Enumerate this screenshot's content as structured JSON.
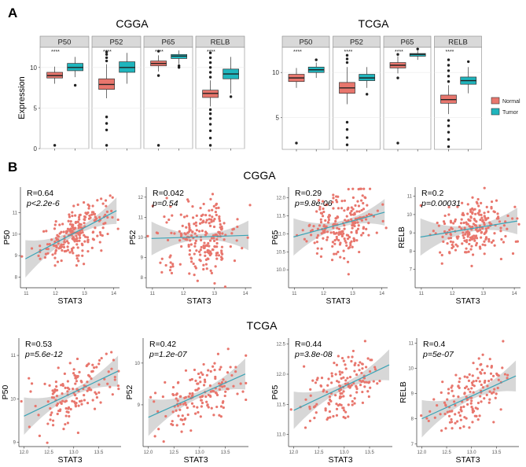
{
  "panel_labels": [
    "A",
    "B"
  ],
  "colors": {
    "normal": "#E8766D",
    "tumor": "#1FB5BD",
    "fit": "#3BA3B5",
    "ci": "#C9C9C9",
    "strip": "#D9D9D9",
    "grid": "#EBEBEB"
  },
  "chart_data": [
    {
      "type": "box",
      "title": "CGGA",
      "ylabel": "Expression",
      "ylim": [
        0,
        12.5
      ],
      "yticks": [
        0,
        5,
        10
      ],
      "facets": [
        "P50",
        "P52",
        "P65",
        "RELB"
      ],
      "significance": "****",
      "legend": [
        "Normal",
        "Tumor"
      ],
      "series": [
        {
          "name": "Normal",
          "boxes": [
            {
              "q1": 8.7,
              "med": 9.0,
              "q3": 9.4,
              "lo": 8.0,
              "hi": 10.1,
              "outliers": [
                0.4
              ]
            },
            {
              "q1": 7.3,
              "med": 7.9,
              "q3": 8.6,
              "lo": 6.2,
              "hi": 10.4,
              "outliers": [
                0.4,
                2.3,
                3.1,
                3.9,
                10.8,
                11.2,
                11.6,
                11.9
              ]
            },
            {
              "q1": 10.2,
              "med": 10.5,
              "q3": 10.8,
              "lo": 9.5,
              "hi": 11.5,
              "outliers": [
                0.4,
                9.0,
                12.0
              ]
            },
            {
              "q1": 6.3,
              "med": 6.8,
              "q3": 7.2,
              "lo": 5.2,
              "hi": 8.4,
              "outliers": [
                0.4,
                1.3,
                2.2,
                3.0,
                3.7,
                4.3,
                4.8,
                8.8,
                9.4,
                10.0,
                10.6,
                11.2,
                11.8
              ]
            }
          ]
        },
        {
          "name": "Tumor",
          "boxes": [
            {
              "q1": 9.6,
              "med": 10.0,
              "q3": 10.5,
              "lo": 8.8,
              "hi": 11.3,
              "outliers": [
                7.8
              ]
            },
            {
              "q1": 9.4,
              "med": 10.0,
              "q3": 10.7,
              "lo": 8.0,
              "hi": 11.8,
              "outliers": []
            },
            {
              "q1": 11.1,
              "med": 11.4,
              "q3": 11.6,
              "lo": 10.4,
              "hi": 12.1,
              "outliers": [
                10.0,
                10.2
              ]
            },
            {
              "q1": 8.6,
              "med": 9.2,
              "q3": 9.8,
              "lo": 6.8,
              "hi": 11.3,
              "outliers": [
                6.4
              ]
            }
          ]
        }
      ]
    },
    {
      "type": "box",
      "title": "TCGA",
      "ylabel": "",
      "ylim": [
        1.5,
        12.8
      ],
      "yticks": [
        5,
        10
      ],
      "facets": [
        "P50",
        "P52",
        "P65",
        "RELB"
      ],
      "significance": "****",
      "legend": [
        "Normal",
        "Tumor"
      ],
      "series": [
        {
          "name": "Normal",
          "boxes": [
            {
              "q1": 9.0,
              "med": 9.4,
              "q3": 9.8,
              "lo": 8.3,
              "hi": 10.5,
              "outliers": [
                2.2
              ]
            },
            {
              "q1": 7.7,
              "med": 8.3,
              "q3": 8.9,
              "lo": 6.5,
              "hi": 10.6,
              "outliers": [
                2.0,
                2.8,
                3.7,
                4.5,
                11.1,
                11.5,
                11.9
              ]
            },
            {
              "q1": 10.5,
              "med": 10.8,
              "q3": 11.1,
              "lo": 9.9,
              "hi": 11.8,
              "outliers": [
                2.2,
                9.4,
                12.0
              ]
            },
            {
              "q1": 6.6,
              "med": 7.0,
              "q3": 7.5,
              "lo": 5.4,
              "hi": 8.6,
              "outliers": [
                1.8,
                2.6,
                3.4,
                4.1,
                4.7,
                9.0,
                9.6,
                10.2,
                10.8,
                11.4
              ]
            }
          ]
        },
        {
          "name": "Tumor",
          "boxes": [
            {
              "q1": 10.0,
              "med": 10.3,
              "q3": 10.6,
              "lo": 9.4,
              "hi": 11.1,
              "outliers": [
                11.4
              ]
            },
            {
              "q1": 9.1,
              "med": 9.4,
              "q3": 9.8,
              "lo": 8.3,
              "hi": 10.6,
              "outliers": [
                7.6
              ]
            },
            {
              "q1": 11.8,
              "med": 12.0,
              "q3": 12.1,
              "lo": 11.4,
              "hi": 12.5,
              "outliers": [
                12.6
              ]
            },
            {
              "q1": 8.7,
              "med": 9.1,
              "q3": 9.5,
              "lo": 7.7,
              "hi": 10.6,
              "outliers": [
                11.2
              ]
            }
          ]
        }
      ]
    },
    {
      "type": "scatter",
      "group": "CGGA",
      "xlabel": "STAT3",
      "ylabel": "P50",
      "annotation_r": "R=0.64",
      "annotation_p": "p<2.2e-6",
      "xlim": [
        10.8,
        14.2
      ],
      "ylim": [
        7.5,
        12.2
      ],
      "xticks": [
        "11",
        "12",
        "13",
        "14"
      ],
      "yticks": [
        "8",
        "9",
        "10",
        "11"
      ],
      "n": 220,
      "slope": 0.72,
      "intercept": 0.95,
      "noise": 0.55,
      "xmean": 12.7,
      "xsd": 0.6
    },
    {
      "type": "scatter",
      "group": "CGGA",
      "xlabel": "STAT3",
      "ylabel": "P52",
      "annotation_r": "R=0.042",
      "annotation_p": "p=0.54",
      "xlim": [
        10.8,
        14.2
      ],
      "ylim": [
        7.5,
        12.5
      ],
      "xticks": [
        "11",
        "12",
        "13",
        "14"
      ],
      "yticks": [
        "8",
        "9",
        "10",
        "11",
        "12"
      ],
      "n": 220,
      "slope": 0.05,
      "intercept": 9.4,
      "noise": 0.9,
      "xmean": 12.6,
      "xsd": 0.6
    },
    {
      "type": "scatter",
      "group": "CGGA",
      "xlabel": "STAT3",
      "ylabel": "P65",
      "annotation_r": "R=0.29",
      "annotation_p": "p=9.8e-06",
      "xlim": [
        10.8,
        14.2
      ],
      "ylim": [
        9.5,
        12.3
      ],
      "xticks": [
        "11",
        "12",
        "13",
        "14"
      ],
      "yticks": [
        "10.0",
        "10.5",
        "11.0",
        "11.5",
        "12.0"
      ],
      "n": 220,
      "slope": 0.22,
      "intercept": 8.5,
      "noise": 0.45,
      "xmean": 12.7,
      "xsd": 0.6
    },
    {
      "type": "scatter",
      "group": "CGGA",
      "xlabel": "STAT3",
      "ylabel": "RELB",
      "annotation_r": "R=0.2",
      "annotation_p": "p=0.00031",
      "xlim": [
        10.8,
        14.2
      ],
      "ylim": [
        6.0,
        11.5
      ],
      "xticks": [
        "11",
        "12",
        "13",
        "14"
      ],
      "yticks": [
        "7",
        "8",
        "9",
        "10",
        "11"
      ],
      "n": 220,
      "slope": 0.28,
      "intercept": 5.7,
      "noise": 0.8,
      "xmean": 12.7,
      "xsd": 0.6
    },
    {
      "type": "scatter",
      "group": "TCGA",
      "xlabel": "STAT3",
      "ylabel": "P50",
      "annotation_r": "R=0.53",
      "annotation_p": "p=5.6e-12",
      "xlim": [
        11.9,
        13.95
      ],
      "ylim": [
        8.9,
        11.4
      ],
      "xticks": [
        "12.0",
        "12.5",
        "13.0",
        "13.5"
      ],
      "yticks": [
        "9",
        "10",
        "11"
      ],
      "n": 150,
      "slope": 0.55,
      "intercept": 3.0,
      "noise": 0.35,
      "xmean": 13.0,
      "xsd": 0.4
    },
    {
      "type": "scatter",
      "group": "TCGA",
      "xlabel": "STAT3",
      "ylabel": "P52",
      "annotation_r": "R=0.42",
      "annotation_p": "p=1.2e-07",
      "xlim": [
        11.9,
        13.95
      ],
      "ylim": [
        8.0,
        10.6
      ],
      "xticks": [
        "12.0",
        "12.5",
        "13.0",
        "13.5"
      ],
      "yticks": [
        "9",
        "10"
      ],
      "n": 150,
      "slope": 0.55,
      "intercept": 2.1,
      "noise": 0.4,
      "xmean": 13.0,
      "xsd": 0.4
    },
    {
      "type": "scatter",
      "group": "TCGA",
      "xlabel": "STAT3",
      "ylabel": "P65",
      "annotation_r": "R=0.44",
      "annotation_p": "p=3.8e-08",
      "xlim": [
        11.9,
        13.95
      ],
      "ylim": [
        10.8,
        12.6
      ],
      "xticks": [
        "12.0",
        "12.5",
        "13.0",
        "13.5"
      ],
      "yticks": [
        "11.0",
        "11.5",
        "12.0",
        "12.5"
      ],
      "n": 150,
      "slope": 0.4,
      "intercept": 6.6,
      "noise": 0.28,
      "xmean": 13.0,
      "xsd": 0.4
    },
    {
      "type": "scatter",
      "group": "TCGA",
      "xlabel": "STAT3",
      "ylabel": "RELB",
      "annotation_r": "R=0.4",
      "annotation_p": "p=5e-07",
      "xlim": [
        11.9,
        13.95
      ],
      "ylim": [
        6.9,
        11.2
      ],
      "xticks": [
        "12.0",
        "12.5",
        "13.0",
        "13.5"
      ],
      "yticks": [
        "7",
        "8",
        "9",
        "10",
        "11"
      ],
      "n": 150,
      "slope": 0.9,
      "intercept": -2.8,
      "noise": 0.65,
      "xmean": 13.0,
      "xsd": 0.4
    }
  ]
}
